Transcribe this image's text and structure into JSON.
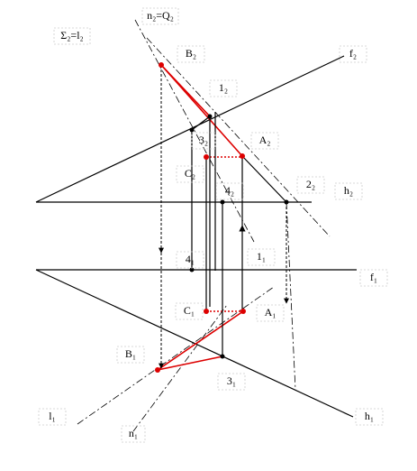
{
  "labels": [
    "n₂=Q₂",
    "Σ₂=l₂",
    "B₂",
    "f₂",
    "1₂",
    "3₂",
    "A₂",
    "C₂",
    "4₂",
    "2₂",
    "h₂",
    "4₁",
    "1₁",
    "f₁",
    "C₁",
    "A₁",
    "B₁",
    "3₁",
    "l₁",
    "h₁",
    "n₁"
  ]
}
